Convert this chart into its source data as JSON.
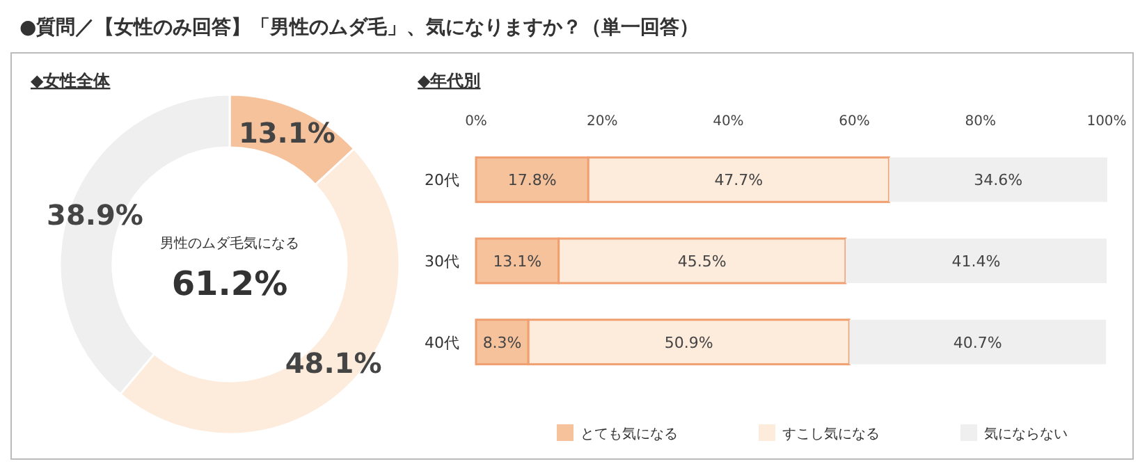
{
  "chart_data": [
    {
      "type": "donut",
      "title": "●質問／【女性のみ回答】「男性のムダ毛」、気になりますか？（単一回答）",
      "subtitle": "◆女性全体",
      "annotations": [
        "男性のムダ毛気になる",
        "61.2%"
      ],
      "categories": [
        null,
        null,
        null
      ],
      "values": [
        13.1,
        48.1,
        38.9
      ],
      "value_labels": [
        "13.1%",
        "48.1%",
        "38.9%"
      ],
      "colors": [
        "#f6c29c",
        "#fdebdc",
        "#efefef"
      ]
    },
    {
      "type": "bar",
      "orientation": "horizontal",
      "stacked": true,
      "title": "◆年代別",
      "categories": [
        "20代",
        "30代",
        "40代"
      ],
      "xlim": [
        0,
        100
      ],
      "xticks": [
        {
          "value": 0,
          "label": "0%"
        },
        {
          "value": 20,
          "label": "20%"
        },
        {
          "value": 40,
          "label": "40%"
        },
        {
          "value": 60,
          "label": "60%"
        },
        {
          "value": 80,
          "label": "80%"
        },
        {
          "value": 100,
          "label": "100%"
        }
      ],
      "legend": "bottom",
      "series": [
        {
          "name": "とても気になる",
          "color": "#f6c29c",
          "values": [
            17.8,
            13.1,
            8.3
          ],
          "value_labels": [
            "17.8%",
            "13.1%",
            "8.3%"
          ]
        },
        {
          "name": "すこし気になる",
          "color": "#fdebdc",
          "values": [
            47.7,
            45.5,
            50.9
          ],
          "value_labels": [
            "47.7%",
            "45.5%",
            "50.9%"
          ]
        },
        {
          "name": "気にならない",
          "color": "#efefef",
          "values": [
            34.6,
            41.4,
            40.7
          ],
          "value_labels": [
            "34.6%",
            "41.4%",
            "40.7%"
          ]
        }
      ]
    }
  ]
}
